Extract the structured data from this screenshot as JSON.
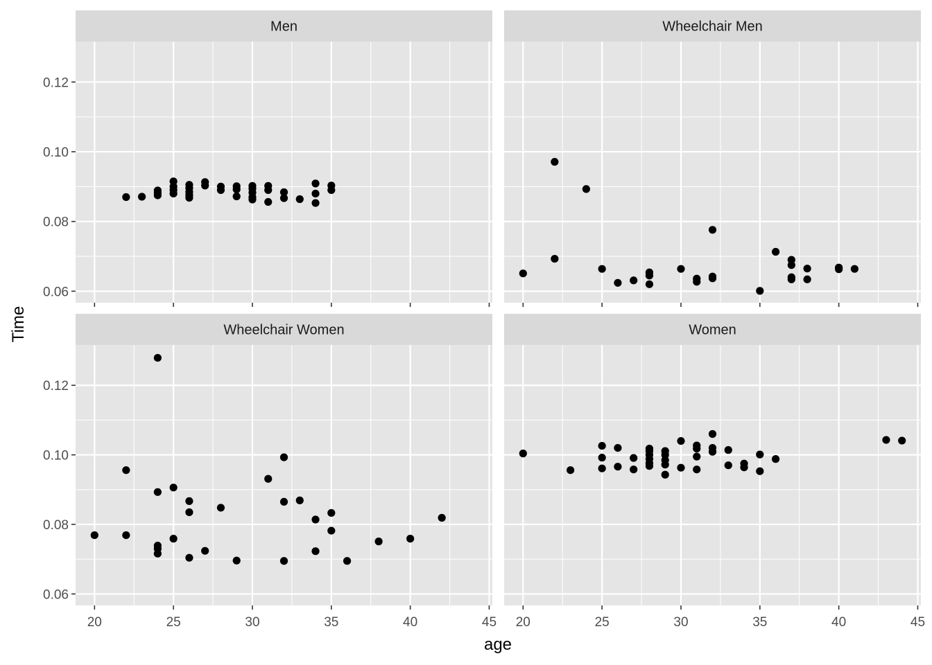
{
  "chart_data": {
    "type": "scatter",
    "xlabel": "age",
    "ylabel": "Time",
    "xlim": [
      18.8,
      45.2
    ],
    "ylim": [
      0.0567,
      0.1316
    ],
    "x_ticks": [
      20,
      25,
      30,
      35,
      40,
      45
    ],
    "x_tick_labels": [
      "20",
      "25",
      "30",
      "35",
      "40",
      "45"
    ],
    "y_ticks": [
      0.06,
      0.08,
      0.1,
      0.12
    ],
    "y_tick_labels": [
      "0.06",
      "0.08",
      "0.10",
      "0.12"
    ],
    "grid": true,
    "colors": {
      "panel_bg": "#e5e5e5",
      "strip_bg": "#d9d9d9",
      "grid": "#ffffff",
      "point": "#000000"
    },
    "panels": [
      {
        "title": "Men",
        "points": [
          [
            22,
            0.087
          ],
          [
            23,
            0.0871
          ],
          [
            24,
            0.0875
          ],
          [
            24,
            0.0882
          ],
          [
            24,
            0.0889
          ],
          [
            25,
            0.088
          ],
          [
            25,
            0.089
          ],
          [
            25,
            0.09
          ],
          [
            25,
            0.0915
          ],
          [
            26,
            0.0868
          ],
          [
            26,
            0.0876
          ],
          [
            26,
            0.0885
          ],
          [
            26,
            0.0896
          ],
          [
            26,
            0.0905
          ],
          [
            27,
            0.0903
          ],
          [
            27,
            0.0913
          ],
          [
            28,
            0.089
          ],
          [
            28,
            0.09
          ],
          [
            29,
            0.0872
          ],
          [
            29,
            0.0892
          ],
          [
            29,
            0.0901
          ],
          [
            30,
            0.0863
          ],
          [
            30,
            0.087
          ],
          [
            30,
            0.0883
          ],
          [
            30,
            0.0894
          ],
          [
            30,
            0.0902
          ],
          [
            31,
            0.0856
          ],
          [
            31,
            0.089
          ],
          [
            31,
            0.0902
          ],
          [
            32,
            0.0867
          ],
          [
            32,
            0.0884
          ],
          [
            33,
            0.0864
          ],
          [
            34,
            0.0853
          ],
          [
            34,
            0.088
          ],
          [
            34,
            0.0909
          ],
          [
            35,
            0.089
          ],
          [
            35,
            0.0903
          ]
        ]
      },
      {
        "title": "Wheelchair Men",
        "points": [
          [
            20,
            0.0651
          ],
          [
            22,
            0.0971
          ],
          [
            22,
            0.0693
          ],
          [
            24,
            0.0893
          ],
          [
            25,
            0.0664
          ],
          [
            26,
            0.0624
          ],
          [
            27,
            0.0631
          ],
          [
            28,
            0.062
          ],
          [
            28,
            0.0645
          ],
          [
            28,
            0.0654
          ],
          [
            30,
            0.0664
          ],
          [
            31,
            0.0627
          ],
          [
            31,
            0.0636
          ],
          [
            32,
            0.0776
          ],
          [
            32,
            0.0637
          ],
          [
            32,
            0.0642
          ],
          [
            35,
            0.0601
          ],
          [
            36,
            0.0713
          ],
          [
            37,
            0.069
          ],
          [
            37,
            0.0675
          ],
          [
            37,
            0.064
          ],
          [
            37,
            0.0634
          ],
          [
            38,
            0.0665
          ],
          [
            38,
            0.0634
          ],
          [
            40,
            0.0663
          ],
          [
            40,
            0.0668
          ],
          [
            41,
            0.0664
          ]
        ]
      },
      {
        "title": "Wheelchair Women",
        "points": [
          [
            20,
            0.0769
          ],
          [
            22,
            0.0956
          ],
          [
            22,
            0.0769
          ],
          [
            24,
            0.1279
          ],
          [
            24,
            0.0893
          ],
          [
            24,
            0.0739
          ],
          [
            24,
            0.073
          ],
          [
            24,
            0.0716
          ],
          [
            25,
            0.0906
          ],
          [
            25,
            0.0759
          ],
          [
            26,
            0.0867
          ],
          [
            26,
            0.0835
          ],
          [
            26,
            0.0704
          ],
          [
            27,
            0.0724
          ],
          [
            28,
            0.0848
          ],
          [
            29,
            0.0696
          ],
          [
            31,
            0.0931
          ],
          [
            32,
            0.0993
          ],
          [
            32,
            0.0865
          ],
          [
            32,
            0.0695
          ],
          [
            33,
            0.0869
          ],
          [
            34,
            0.0814
          ],
          [
            34,
            0.0723
          ],
          [
            35,
            0.0833
          ],
          [
            35,
            0.0782
          ],
          [
            36,
            0.0695
          ],
          [
            38,
            0.0751
          ],
          [
            40,
            0.0759
          ],
          [
            42,
            0.0819
          ]
        ]
      },
      {
        "title": "Women",
        "points": [
          [
            20,
            0.1004
          ],
          [
            23,
            0.0956
          ],
          [
            25,
            0.1026
          ],
          [
            25,
            0.0992
          ],
          [
            25,
            0.0961
          ],
          [
            26,
            0.102
          ],
          [
            26,
            0.0966
          ],
          [
            27,
            0.0991
          ],
          [
            27,
            0.0958
          ],
          [
            28,
            0.1018
          ],
          [
            28,
            0.1011
          ],
          [
            28,
            0.1
          ],
          [
            28,
            0.0988
          ],
          [
            28,
            0.0976
          ],
          [
            28,
            0.0968
          ],
          [
            29,
            0.1011
          ],
          [
            29,
            0.1
          ],
          [
            29,
            0.0985
          ],
          [
            29,
            0.0972
          ],
          [
            29,
            0.0943
          ],
          [
            30,
            0.104
          ],
          [
            30,
            0.0963
          ],
          [
            31,
            0.1027
          ],
          [
            31,
            0.1018
          ],
          [
            31,
            0.0995
          ],
          [
            31,
            0.0958
          ],
          [
            32,
            0.106
          ],
          [
            32,
            0.102
          ],
          [
            32,
            0.1009
          ],
          [
            33,
            0.1014
          ],
          [
            33,
            0.097
          ],
          [
            34,
            0.0975
          ],
          [
            34,
            0.0964
          ],
          [
            35,
            0.1001
          ],
          [
            35,
            0.0953
          ],
          [
            36,
            0.0988
          ],
          [
            43,
            0.1043
          ],
          [
            44,
            0.1041
          ]
        ]
      }
    ]
  }
}
